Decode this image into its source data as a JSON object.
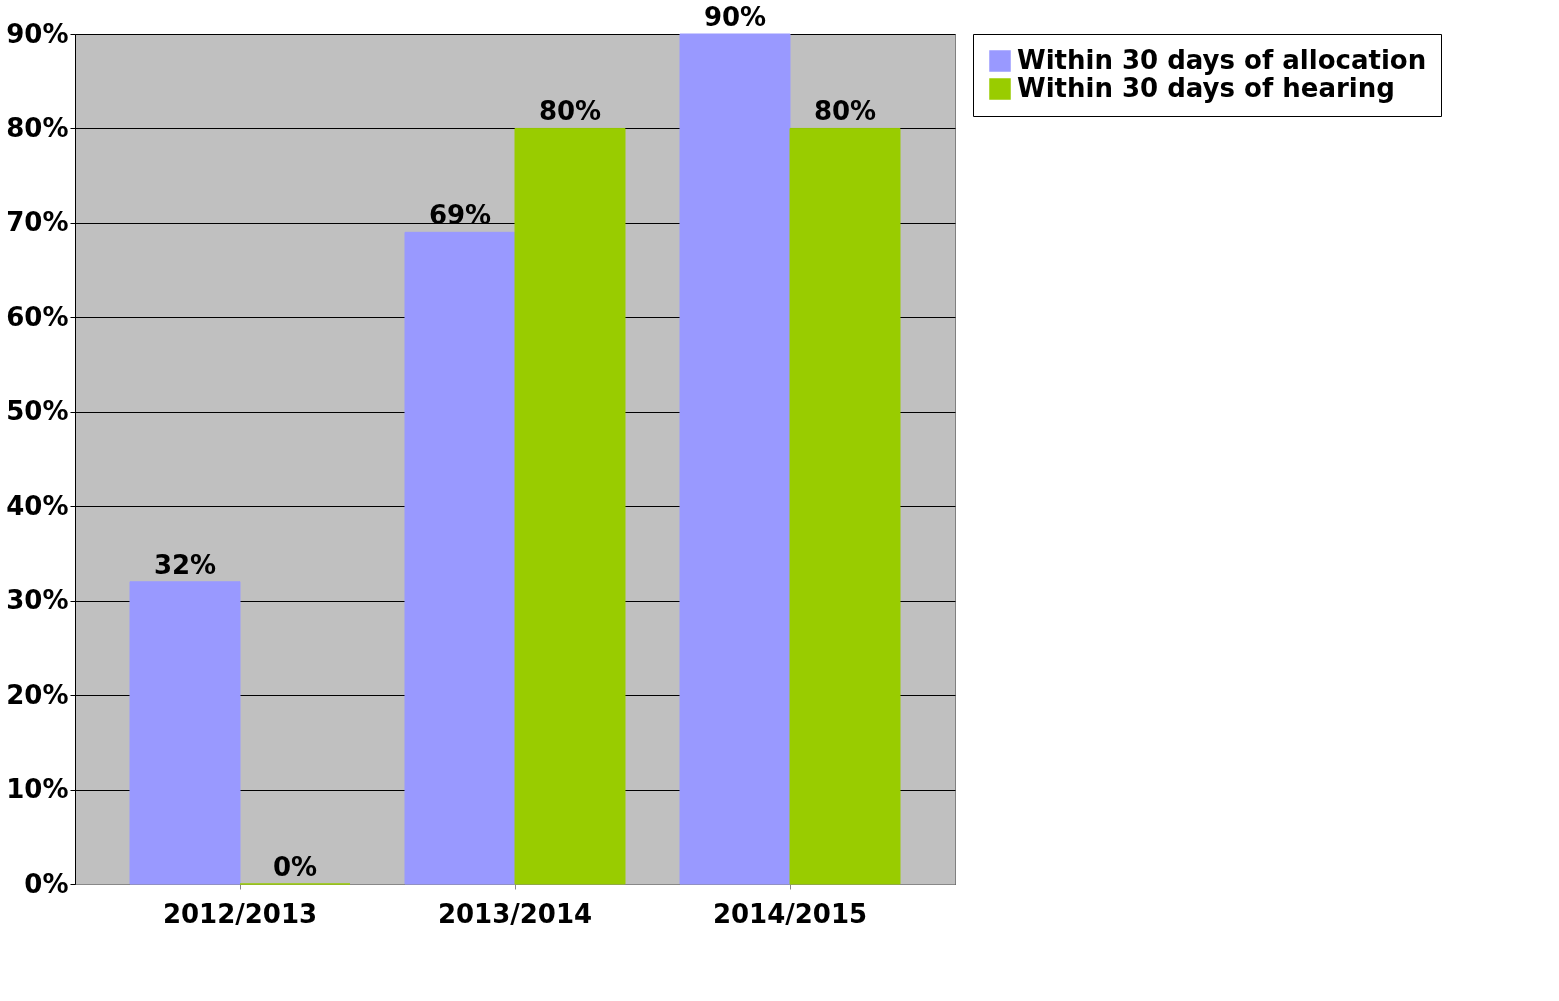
{
  "chart_data": {
    "type": "bar",
    "categories": [
      "2012/2013",
      "2013/2014",
      "2014/2015"
    ],
    "series": [
      {
        "name": "Within 30 days of allocation",
        "color": "#9999ff",
        "values": [
          32,
          69,
          90
        ],
        "value_labels": [
          "32%",
          "69%",
          "90%"
        ]
      },
      {
        "name": "Within 30 days of hearing",
        "color": "#99cc00",
        "values": [
          0,
          80,
          80
        ],
        "value_labels": [
          "0%",
          "80%",
          "80%"
        ]
      }
    ],
    "ylim": [
      0,
      90
    ],
    "yticks": [
      {
        "value": 0,
        "label": "0%"
      },
      {
        "value": 10,
        "label": "10%"
      },
      {
        "value": 20,
        "label": "20%"
      },
      {
        "value": 30,
        "label": "30%"
      },
      {
        "value": 40,
        "label": "40%"
      },
      {
        "value": 50,
        "label": "50%"
      },
      {
        "value": 60,
        "label": "60%"
      },
      {
        "value": 70,
        "label": "70%"
      },
      {
        "value": 80,
        "label": "80%"
      },
      {
        "value": 90,
        "label": "90%"
      }
    ],
    "grid": "y",
    "legend": "right"
  }
}
